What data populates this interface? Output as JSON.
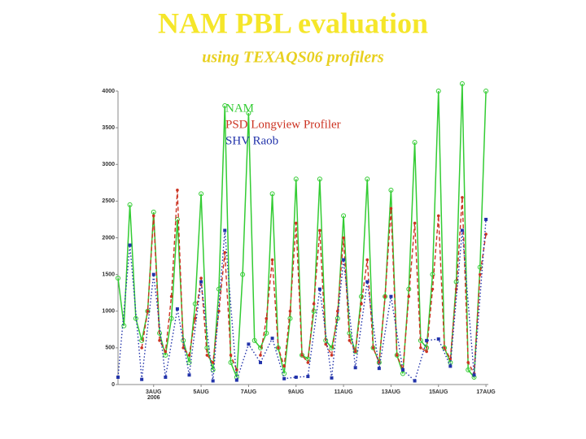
{
  "chart_data": {
    "type": "line",
    "title": "NAM PBL evaluation",
    "subtitle": "using TEXAQS06 profilers",
    "annotations": [
      "2006"
    ],
    "xlim": [
      1.5,
      17.1
    ],
    "xticks": [
      {
        "value": 3,
        "label": "3AUG"
      },
      {
        "value": 5,
        "label": "5AUG"
      },
      {
        "value": 7,
        "label": "7AUG"
      },
      {
        "value": 9,
        "label": "9AUG"
      },
      {
        "value": 11,
        "label": "11AUG"
      },
      {
        "value": 13,
        "label": "13AUG"
      },
      {
        "value": 15,
        "label": "15AUG"
      },
      {
        "value": 17,
        "label": "17AUG"
      }
    ],
    "ylim": [
      0,
      4000
    ],
    "yticks": [
      0,
      500,
      1000,
      1500,
      2000,
      2500,
      3000,
      3500,
      4000
    ],
    "legend": "top-left",
    "series": [
      {
        "name": "NAM",
        "color": "#33cc33",
        "style": "solid",
        "x": [
          1.5,
          1.75,
          2,
          2.25,
          2.5,
          2.75,
          3,
          3.25,
          3.5,
          3.75,
          4,
          4.25,
          4.5,
          4.75,
          5,
          5.25,
          5.5,
          5.75,
          6,
          6.25,
          6.5,
          6.75,
          7,
          7.25,
          7.5,
          7.75,
          8,
          8.25,
          8.5,
          8.75,
          9,
          9.25,
          9.5,
          9.75,
          10,
          10.25,
          10.5,
          10.75,
          11,
          11.25,
          11.5,
          11.75,
          12,
          12.25,
          12.5,
          12.75,
          13,
          13.25,
          13.5,
          13.75,
          14,
          14.25,
          14.5,
          14.75,
          15,
          15.25,
          15.5,
          15.75,
          16,
          16.25,
          16.5,
          16.75,
          17
        ],
        "values": [
          1450,
          800,
          2450,
          900,
          600,
          1000,
          2350,
          700,
          400,
          900,
          2250,
          600,
          300,
          1100,
          2600,
          500,
          200,
          1300,
          3800,
          300,
          100,
          1500,
          3700,
          600,
          500,
          700,
          2600,
          500,
          150,
          900,
          2800,
          400,
          350,
          1000,
          2800,
          600,
          500,
          900,
          2300,
          700,
          450,
          1200,
          2800,
          500,
          300,
          1200,
          2650,
          400,
          150,
          1300,
          3300,
          600,
          500,
          1500,
          4000,
          500,
          300,
          1400,
          4100,
          200,
          100,
          1600,
          4000
        ]
      },
      {
        "name": "PSD Longview Profiler",
        "color": "#cc3322",
        "style": "dashed",
        "x": [
          2.5,
          2.75,
          3,
          3.25,
          3.5,
          3.75,
          4,
          4.25,
          4.5,
          4.75,
          5,
          5.25,
          5.5,
          5.75,
          6,
          6.25,
          6.5,
          6.75,
          7,
          7.25,
          7.5,
          7.75,
          8,
          8.25,
          8.5,
          8.75,
          9,
          9.25,
          9.5,
          9.75,
          10,
          10.25,
          10.5,
          10.75,
          11,
          11.25,
          11.5,
          11.75,
          12,
          12.25,
          12.5,
          12.75,
          13,
          13.25,
          13.5,
          13.75,
          14,
          14.25,
          14.5,
          14.75,
          15,
          15.25,
          15.5,
          15.75,
          16,
          16.25,
          16.5,
          16.75,
          17
        ],
        "values": [
          500,
          1000,
          2300,
          600,
          450,
          1200,
          2650,
          500,
          400,
          900,
          1450,
          400,
          300,
          1000,
          1800,
          400,
          200,
          null,
          null,
          null,
          400,
          900,
          1700,
          500,
          250,
          1000,
          2200,
          400,
          300,
          1100,
          2100,
          550,
          400,
          1000,
          2000,
          600,
          450,
          1100,
          1700,
          500,
          300,
          1200,
          2400,
          400,
          200,
          1200,
          2200,
          500,
          450,
          1300,
          2300,
          500,
          350,
          1300,
          2550,
          300,
          150,
          1500,
          2050
        ]
      },
      {
        "name": "SHV Raob",
        "color": "#2233aa",
        "style": "dotted",
        "x": [
          1.5,
          2,
          2.5,
          3,
          3.5,
          4,
          4.5,
          5,
          5.5,
          6,
          6.5,
          7,
          7.5,
          8,
          8.5,
          9,
          9.5,
          10,
          10.5,
          11,
          11.5,
          12,
          12.5,
          13,
          13.5,
          14,
          14.5,
          15,
          15.5,
          16,
          16.5,
          17
        ],
        "values": [
          100,
          1900,
          70,
          1500,
          100,
          1030,
          130,
          1400,
          50,
          2100,
          60,
          550,
          300,
          630,
          80,
          100,
          110,
          1300,
          90,
          1700,
          230,
          1400,
          220,
          1200,
          200,
          50,
          600,
          620,
          250,
          2100,
          130,
          2250
        ]
      }
    ]
  }
}
